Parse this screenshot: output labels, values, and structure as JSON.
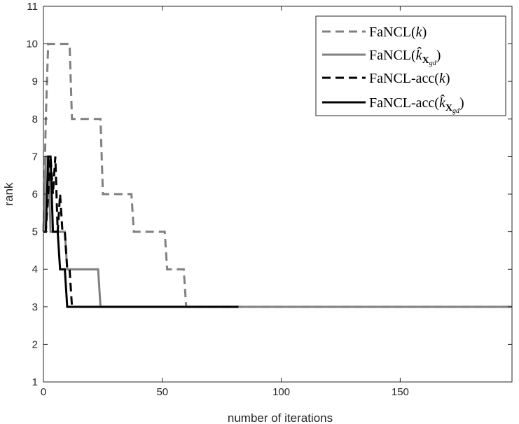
{
  "chart_data": {
    "type": "line",
    "title": "",
    "xlabel": "number of iterations",
    "ylabel": "rank",
    "xlim": [
      0,
      197
    ],
    "ylim": [
      1,
      11
    ],
    "xticks": [
      0,
      50,
      100,
      150
    ],
    "yticks": [
      1,
      2,
      3,
      4,
      5,
      6,
      7,
      8,
      9,
      10,
      11
    ],
    "grid": false,
    "legend_position": "top-right",
    "series": [
      {
        "name": "FaNCL(k)",
        "legend": {
          "main": "FaNCL(",
          "italic": "k",
          "close": ")"
        },
        "color": "#808080",
        "style": "dashed",
        "x": [
          0,
          1,
          2,
          3,
          11,
          12,
          24,
          25,
          37,
          38,
          51,
          52,
          59,
          60,
          197
        ],
        "y": [
          5,
          8,
          10,
          10,
          10,
          8,
          8,
          6,
          6,
          5,
          5,
          4,
          4,
          3,
          3
        ]
      },
      {
        "name": "FaNCL(k̂_Xgd)",
        "legend": {
          "main": "FaNCL(",
          "italic": "k̂",
          "sub": "X",
          "subsub": "gd",
          "close": ")"
        },
        "color": "#808080",
        "style": "solid",
        "x": [
          0,
          1,
          2,
          3,
          4,
          9,
          10,
          23,
          24,
          197
        ],
        "y": [
          5,
          7,
          7,
          5,
          5,
          5,
          4,
          4,
          3,
          3
        ]
      },
      {
        "name": "FaNCL-acc(k)",
        "legend": {
          "main": "FaNCL-acc(",
          "italic": "k",
          "close": ")"
        },
        "color": "#000000",
        "style": "dashed",
        "x": [
          0,
          1,
          2,
          3,
          4,
          5,
          6,
          7,
          8,
          9,
          10,
          11,
          12
        ],
        "y": [
          5,
          5,
          6,
          7,
          6,
          7,
          5,
          6,
          5,
          5,
          4,
          4,
          3
        ]
      },
      {
        "name": "FaNCL-acc(k̂_Xgd)",
        "legend": {
          "main": "FaNCL-acc(",
          "italic": "k̂",
          "sub": "X",
          "subsub": "gd",
          "close": ")"
        },
        "color": "#000000",
        "style": "solid",
        "x": [
          0,
          1,
          2,
          3,
          4,
          5,
          6,
          7,
          8,
          9,
          10,
          82
        ],
        "y": [
          5,
          5,
          7,
          7,
          5,
          5,
          5,
          4,
          4,
          4,
          3,
          3
        ]
      }
    ]
  }
}
